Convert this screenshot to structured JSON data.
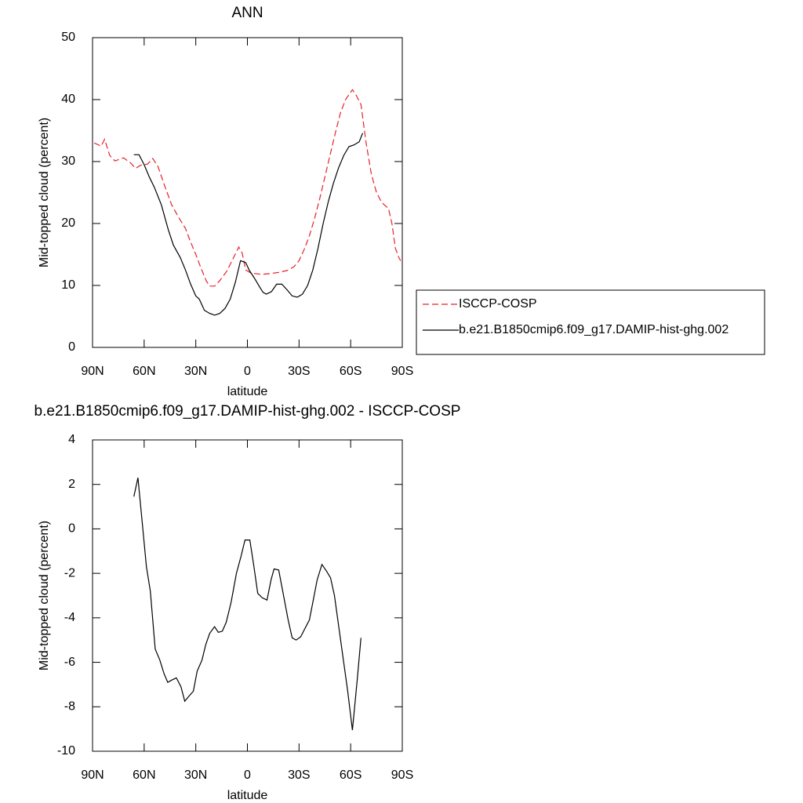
{
  "chart_data": [
    {
      "type": "line",
      "title": "ANN",
      "xlabel": "latitude",
      "ylabel": "Mid-topped cloud (percent)",
      "xlim": [
        90,
        -90
      ],
      "xticks": [
        {
          "value": 90,
          "label": "90N"
        },
        {
          "value": 60,
          "label": "60N"
        },
        {
          "value": 30,
          "label": "30N"
        },
        {
          "value": 0,
          "label": "0"
        },
        {
          "value": -30,
          "label": "30S"
        },
        {
          "value": -60,
          "label": "60S"
        },
        {
          "value": -90,
          "label": "90S"
        }
      ],
      "ylim": [
        0,
        50
      ],
      "yticks": [
        0,
        10,
        20,
        30,
        40,
        50
      ],
      "legend": "right",
      "series": [
        {
          "name": "ISCCP-COSP",
          "color": "#e8202a",
          "linestyle": "dashed",
          "x": [
            89,
            85,
            83,
            80,
            77,
            72,
            68,
            65,
            62,
            58,
            55,
            52,
            48,
            44,
            40,
            36,
            33,
            30,
            27,
            24,
            22,
            19,
            16,
            12,
            8,
            5,
            3,
            1,
            -2,
            -8,
            -13,
            -18,
            -23,
            -27,
            -30,
            -33,
            -36,
            -39,
            -42,
            -45,
            -48,
            -51,
            -54,
            -57,
            -61,
            -63,
            -66,
            -69,
            -72,
            -75,
            -78,
            -82,
            -84,
            -86,
            -88,
            -89
          ],
          "values": [
            33.0,
            32.5,
            33.6,
            31.0,
            30.1,
            30.6,
            29.8,
            28.9,
            29.4,
            29.6,
            30.5,
            29.2,
            26.0,
            23.0,
            21.0,
            19.2,
            17.0,
            15.0,
            12.8,
            10.8,
            9.9,
            9.9,
            10.8,
            12.3,
            14.5,
            16.2,
            15.2,
            12.5,
            12.0,
            11.8,
            11.9,
            12.1,
            12.4,
            13.0,
            14.0,
            15.8,
            18.0,
            20.8,
            24.0,
            27.5,
            31.0,
            34.5,
            37.8,
            40.0,
            41.6,
            40.8,
            39.2,
            33.0,
            28.0,
            25.0,
            23.4,
            22.4,
            20.0,
            16.0,
            14.5,
            14.0
          ]
        },
        {
          "name": "b.e21.B1850cmip6.f09_g17.DAMIP-hist-ghg.002",
          "color": "#000000",
          "linestyle": "solid",
          "x": [
            66,
            63,
            60,
            57,
            54,
            50,
            46,
            43,
            39,
            36,
            33,
            30,
            28,
            25,
            22,
            19,
            16,
            13,
            10,
            7,
            4,
            1,
            -1,
            -4,
            -7,
            -9,
            -11,
            -14,
            -17,
            -20,
            -23,
            -26,
            -29,
            -32,
            -35,
            -38,
            -41,
            -44,
            -47,
            -50,
            -53,
            -56,
            -59,
            -62,
            -65,
            -67
          ],
          "values": [
            31.1,
            31.1,
            29.5,
            27.5,
            25.8,
            23.0,
            19.0,
            16.5,
            14.5,
            12.5,
            10.2,
            8.3,
            7.8,
            6.0,
            5.5,
            5.2,
            5.5,
            6.3,
            7.8,
            10.5,
            14.0,
            13.7,
            12.5,
            11.2,
            9.8,
            8.9,
            8.6,
            9.0,
            10.2,
            10.2,
            9.3,
            8.3,
            8.1,
            8.6,
            10.0,
            12.5,
            16.0,
            20.0,
            23.5,
            26.5,
            29.0,
            31.0,
            32.4,
            32.7,
            33.2,
            34.6
          ]
        }
      ]
    },
    {
      "type": "line",
      "title": "b.e21.B1850cmip6.f09_g17.DAMIP-hist-ghg.002 - ISCCP-COSP",
      "xlabel": "latitude",
      "ylabel": "Mid-topped cloud (percent)",
      "xlim": [
        90,
        -90
      ],
      "xticks": [
        {
          "value": 90,
          "label": "90N"
        },
        {
          "value": 60,
          "label": "60N"
        },
        {
          "value": 30,
          "label": "30N"
        },
        {
          "value": 0,
          "label": "0"
        },
        {
          "value": -30,
          "label": "30S"
        },
        {
          "value": -60,
          "label": "60S"
        },
        {
          "value": -90,
          "label": "90S"
        }
      ],
      "ylim": [
        -10,
        4
      ],
      "yticks": [
        -10,
        -8,
        -6,
        -4,
        -2,
        0,
        2,
        4
      ],
      "series": [
        {
          "color": "#000000",
          "linestyle": "solid",
          "x": [
            66,
            63.6,
            61.4,
            58.7,
            56.4,
            53.6,
            50.9,
            48.5,
            46.3,
            44,
            41.3,
            38.6,
            36.4,
            33.7,
            31.4,
            29.2,
            26.4,
            24.2,
            21.9,
            19.1,
            16.9,
            14.6,
            12.3,
            9.5,
            6.4,
            3.6,
            1.4,
            -1.4,
            -3.6,
            -6,
            -8.6,
            -11.4,
            -13.7,
            -15.5,
            -18.2,
            -21,
            -23.7,
            -26,
            -28.3,
            -31,
            -33.3,
            -36,
            -38.3,
            -40.5,
            -43.3,
            -46,
            -48.3,
            -50.6,
            -52.9,
            -55.6,
            -58.3,
            -61,
            -63.8,
            -66
          ],
          "values": [
            1.45,
            2.3,
            0.5,
            -1.7,
            -2.8,
            -5.4,
            -5.9,
            -6.5,
            -6.9,
            -6.8,
            -6.7,
            -7.1,
            -7.75,
            -7.5,
            -7.3,
            -6.4,
            -5.9,
            -5.2,
            -4.7,
            -4.4,
            -4.65,
            -4.6,
            -4.2,
            -3.3,
            -2.0,
            -1.2,
            -0.5,
            -0.5,
            -1.6,
            -2.9,
            -3.1,
            -3.2,
            -2.3,
            -1.8,
            -1.85,
            -3.0,
            -4.1,
            -4.9,
            -5.0,
            -4.85,
            -4.5,
            -4.1,
            -3.2,
            -2.3,
            -1.6,
            -1.9,
            -2.2,
            -3.0,
            -4.3,
            -5.8,
            -7.3,
            -9.05,
            -6.8,
            -4.9
          ]
        }
      ]
    }
  ]
}
